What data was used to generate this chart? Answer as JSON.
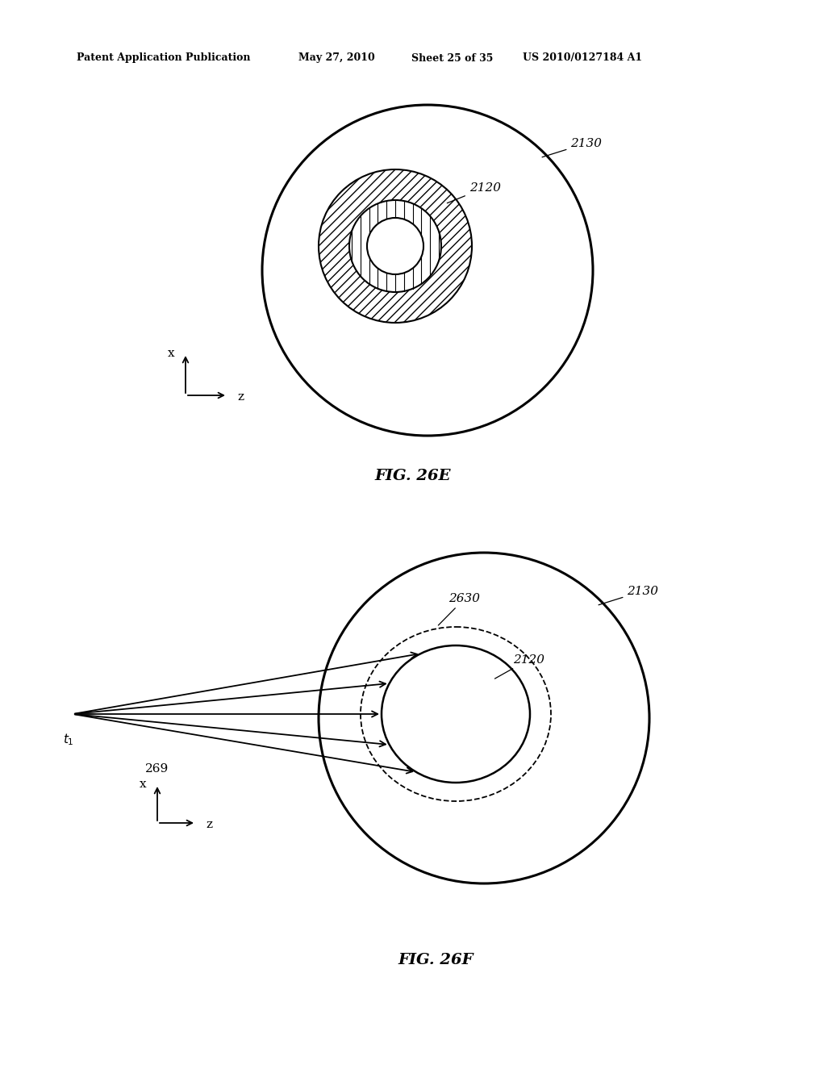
{
  "bg_color": "#ffffff",
  "header_text": "Patent Application Publication",
  "header_date": "May 27, 2010",
  "header_sheet": "Sheet 25 of 35",
  "header_patent": "US 2010/0127184 A1",
  "fig26e_label": "FIG. 26E",
  "fig26f_label": "FIG. 26F"
}
